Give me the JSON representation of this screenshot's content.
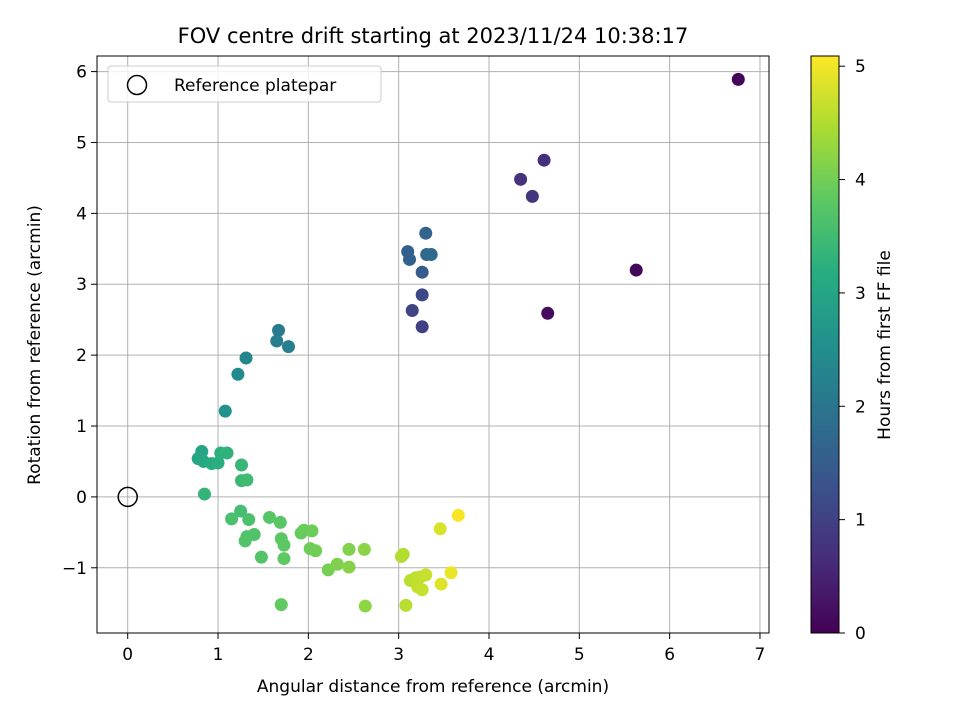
{
  "chart_data": {
    "type": "scatter",
    "title": "FOV centre drift starting at 2023/11/24 10:38:17",
    "xlabel": "Angular distance from reference (arcmin)",
    "ylabel": "Rotation from reference (arcmin)",
    "xlim": [
      -0.34,
      7.1
    ],
    "ylim": [
      -1.92,
      6.22
    ],
    "xticks": [
      0,
      1,
      2,
      3,
      4,
      5,
      6,
      7
    ],
    "yticks": [
      -1,
      0,
      1,
      2,
      3,
      4,
      5,
      6
    ],
    "grid": true,
    "legend": {
      "placement": "top-left",
      "entries": [
        "Reference platepar"
      ]
    },
    "reference_point": {
      "x": 0,
      "y": 0,
      "label": "Reference platepar"
    },
    "colorbar": {
      "label": "Hours from first FF file",
      "colormap": "viridis",
      "min": 0,
      "max": 5.09,
      "ticks": [
        0,
        1,
        2,
        3,
        4,
        5
      ]
    },
    "points": [
      {
        "x": 6.76,
        "y": 5.89,
        "c": 0.05
      },
      {
        "x": 5.63,
        "y": 3.2,
        "c": 0.1
      },
      {
        "x": 4.65,
        "y": 2.59,
        "c": 0.15
      },
      {
        "x": 4.61,
        "y": 4.75,
        "c": 0.7
      },
      {
        "x": 4.35,
        "y": 4.48,
        "c": 0.75
      },
      {
        "x": 4.48,
        "y": 4.24,
        "c": 0.8
      },
      {
        "x": 3.26,
        "y": 2.4,
        "c": 1.0
      },
      {
        "x": 3.15,
        "y": 2.63,
        "c": 1.05
      },
      {
        "x": 3.26,
        "y": 2.85,
        "c": 1.1
      },
      {
        "x": 3.26,
        "y": 3.17,
        "c": 1.5
      },
      {
        "x": 3.1,
        "y": 3.46,
        "c": 1.55
      },
      {
        "x": 3.12,
        "y": 3.35,
        "c": 1.6
      },
      {
        "x": 3.3,
        "y": 3.72,
        "c": 1.65
      },
      {
        "x": 3.31,
        "y": 3.42,
        "c": 1.7
      },
      {
        "x": 3.36,
        "y": 3.42,
        "c": 1.75
      },
      {
        "x": 1.67,
        "y": 2.35,
        "c": 2.1
      },
      {
        "x": 1.65,
        "y": 2.2,
        "c": 2.15
      },
      {
        "x": 1.78,
        "y": 2.12,
        "c": 2.2
      },
      {
        "x": 1.31,
        "y": 1.96,
        "c": 2.35
      },
      {
        "x": 1.22,
        "y": 1.73,
        "c": 2.45
      },
      {
        "x": 1.08,
        "y": 1.21,
        "c": 2.6
      },
      {
        "x": 0.82,
        "y": 0.64,
        "c": 3.0
      },
      {
        "x": 0.78,
        "y": 0.54,
        "c": 3.05
      },
      {
        "x": 0.84,
        "y": 0.5,
        "c": 3.1
      },
      {
        "x": 0.93,
        "y": 0.47,
        "c": 3.15
      },
      {
        "x": 1.0,
        "y": 0.48,
        "c": 3.2
      },
      {
        "x": 1.03,
        "y": 0.62,
        "c": 3.25
      },
      {
        "x": 1.1,
        "y": 0.62,
        "c": 3.3
      },
      {
        "x": 1.26,
        "y": 0.45,
        "c": 3.4
      },
      {
        "x": 0.85,
        "y": 0.04,
        "c": 3.35
      },
      {
        "x": 1.26,
        "y": 0.23,
        "c": 3.45
      },
      {
        "x": 1.32,
        "y": 0.24,
        "c": 3.5
      },
      {
        "x": 1.25,
        "y": -0.2,
        "c": 3.55
      },
      {
        "x": 1.15,
        "y": -0.31,
        "c": 3.6
      },
      {
        "x": 1.34,
        "y": -0.32,
        "c": 3.62
      },
      {
        "x": 1.32,
        "y": -0.56,
        "c": 3.65
      },
      {
        "x": 1.4,
        "y": -0.53,
        "c": 3.67
      },
      {
        "x": 1.3,
        "y": -0.62,
        "c": 3.7
      },
      {
        "x": 1.48,
        "y": -0.85,
        "c": 3.72
      },
      {
        "x": 1.57,
        "y": -0.29,
        "c": 3.75
      },
      {
        "x": 1.69,
        "y": -0.36,
        "c": 3.78
      },
      {
        "x": 1.7,
        "y": -0.59,
        "c": 3.8
      },
      {
        "x": 1.73,
        "y": -0.68,
        "c": 3.82
      },
      {
        "x": 1.73,
        "y": -0.87,
        "c": 3.84
      },
      {
        "x": 1.7,
        "y": -1.52,
        "c": 3.85
      },
      {
        "x": 1.92,
        "y": -0.51,
        "c": 3.9
      },
      {
        "x": 1.95,
        "y": -0.47,
        "c": 3.92
      },
      {
        "x": 2.04,
        "y": -0.48,
        "c": 3.94
      },
      {
        "x": 2.02,
        "y": -0.73,
        "c": 3.96
      },
      {
        "x": 2.08,
        "y": -0.76,
        "c": 3.98
      },
      {
        "x": 2.22,
        "y": -1.03,
        "c": 4.05
      },
      {
        "x": 2.32,
        "y": -0.95,
        "c": 4.1
      },
      {
        "x": 2.45,
        "y": -0.74,
        "c": 4.12
      },
      {
        "x": 2.45,
        "y": -0.99,
        "c": 4.15
      },
      {
        "x": 2.62,
        "y": -0.74,
        "c": 4.2
      },
      {
        "x": 2.63,
        "y": -1.54,
        "c": 4.22
      },
      {
        "x": 3.03,
        "y": -0.84,
        "c": 4.5
      },
      {
        "x": 3.05,
        "y": -0.81,
        "c": 4.52
      },
      {
        "x": 3.08,
        "y": -1.53,
        "c": 4.55
      },
      {
        "x": 3.13,
        "y": -1.18,
        "c": 4.58
      },
      {
        "x": 3.19,
        "y": -1.14,
        "c": 4.6
      },
      {
        "x": 3.24,
        "y": -1.13,
        "c": 4.62
      },
      {
        "x": 3.21,
        "y": -1.27,
        "c": 4.64
      },
      {
        "x": 3.26,
        "y": -1.31,
        "c": 4.66
      },
      {
        "x": 3.3,
        "y": -1.1,
        "c": 4.68
      },
      {
        "x": 3.46,
        "y": -0.45,
        "c": 4.8
      },
      {
        "x": 3.47,
        "y": -1.23,
        "c": 4.85
      },
      {
        "x": 3.58,
        "y": -1.07,
        "c": 4.95
      },
      {
        "x": 3.66,
        "y": -0.26,
        "c": 5.05
      }
    ]
  }
}
